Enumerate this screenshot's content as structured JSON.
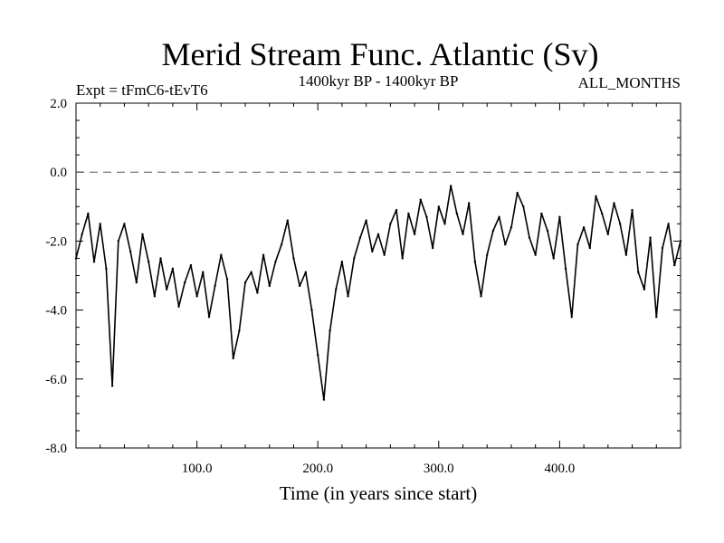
{
  "chart_data": {
    "type": "line",
    "title": "Merid Stream Func. Atlantic (Sv)",
    "subtitle_left": "Expt = tFmC6-tEvT6",
    "subtitle_center": "1400kyr BP - 1400kyr BP",
    "subtitle_right": "ALL_MONTHS",
    "xlabel": "Time (in years since start)",
    "ylabel": "",
    "xlim": [
      0,
      500
    ],
    "ylim": [
      -8.0,
      2.0
    ],
    "xticks": [
      100,
      200,
      300,
      400
    ],
    "xtick_labels": [
      "100.0",
      "200.0",
      "300.0",
      "400.0"
    ],
    "yticks": [
      2,
      0,
      -2,
      -4,
      -6,
      -8
    ],
    "ytick_labels": [
      "2.0",
      "0.0",
      "-2.0",
      "-4.0",
      "-6.0",
      "-8.0"
    ],
    "reference_line": {
      "y": 0.0,
      "style": "dashed"
    },
    "series": [
      {
        "name": "Merid Stream Func. Atlantic",
        "x": [
          0,
          5,
          10,
          15,
          20,
          25,
          30,
          35,
          40,
          45,
          50,
          55,
          60,
          65,
          70,
          75,
          80,
          85,
          90,
          95,
          100,
          105,
          110,
          115,
          120,
          125,
          130,
          135,
          140,
          145,
          150,
          155,
          160,
          165,
          170,
          175,
          180,
          185,
          190,
          195,
          200,
          205,
          210,
          215,
          220,
          225,
          230,
          235,
          240,
          245,
          250,
          255,
          260,
          265,
          270,
          275,
          280,
          285,
          290,
          295,
          300,
          305,
          310,
          315,
          320,
          325,
          330,
          335,
          340,
          345,
          350,
          355,
          360,
          365,
          370,
          375,
          380,
          385,
          390,
          395,
          400,
          405,
          410,
          415,
          420,
          425,
          430,
          435,
          440,
          445,
          450,
          455,
          460,
          465,
          470,
          475,
          480,
          485,
          490,
          495,
          500
        ],
        "y": [
          -2.5,
          -1.8,
          -1.2,
          -2.6,
          -1.5,
          -2.8,
          -6.2,
          -2.0,
          -1.5,
          -2.3,
          -3.2,
          -1.8,
          -2.6,
          -3.6,
          -2.5,
          -3.4,
          -2.8,
          -3.9,
          -3.2,
          -2.7,
          -3.6,
          -2.9,
          -4.2,
          -3.3,
          -2.4,
          -3.1,
          -5.4,
          -4.6,
          -3.2,
          -2.9,
          -3.5,
          -2.4,
          -3.3,
          -2.6,
          -2.1,
          -1.4,
          -2.5,
          -3.3,
          -2.9,
          -4.0,
          -5.3,
          -6.6,
          -4.6,
          -3.4,
          -2.6,
          -3.6,
          -2.5,
          -1.9,
          -1.4,
          -2.3,
          -1.8,
          -2.4,
          -1.5,
          -1.1,
          -2.5,
          -1.2,
          -1.8,
          -0.8,
          -1.3,
          -2.2,
          -1.0,
          -1.5,
          -0.4,
          -1.2,
          -1.8,
          -0.9,
          -2.6,
          -3.6,
          -2.4,
          -1.7,
          -1.3,
          -2.1,
          -1.6,
          -0.6,
          -1.0,
          -1.9,
          -2.4,
          -1.2,
          -1.7,
          -2.5,
          -1.3,
          -2.8,
          -4.2,
          -2.1,
          -1.6,
          -2.2,
          -0.7,
          -1.2,
          -1.8,
          -0.9,
          -1.5,
          -2.4,
          -1.1,
          -2.9,
          -3.4,
          -1.9,
          -4.2,
          -2.2,
          -1.5,
          -2.7,
          -2.0
        ]
      }
    ]
  }
}
